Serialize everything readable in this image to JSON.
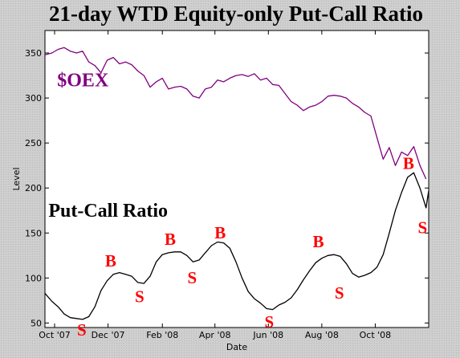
{
  "chart_data": {
    "type": "line",
    "title": "21-day WTD Equity-only Put-Call Ratio",
    "xlabel": "Date",
    "ylabel": "Level",
    "ylim": [
      45,
      375
    ],
    "xlim": [
      "2007-09-20",
      "2008-12-01"
    ],
    "grid": false,
    "background_color": "#ffffff",
    "x_ticks": [
      {
        "date": "2007-10-01",
        "label": "Oct '07"
      },
      {
        "date": "2007-12-01",
        "label": "Dec '07"
      },
      {
        "date": "2008-02-01",
        "label": "Feb '08"
      },
      {
        "date": "2008-04-01",
        "label": "Apr '08"
      },
      {
        "date": "2008-06-01",
        "label": "Jun '08"
      },
      {
        "date": "2008-08-01",
        "label": "Aug '08"
      },
      {
        "date": "2008-10-01",
        "label": "Oct '08"
      }
    ],
    "y_ticks": [
      50,
      100,
      150,
      200,
      250,
      300,
      350
    ],
    "series": [
      {
        "name": "$OEX",
        "color": "#800080",
        "points": [
          [
            "2007-09-20",
            348
          ],
          [
            "2007-09-28",
            350
          ],
          [
            "2007-10-05",
            354
          ],
          [
            "2007-10-12",
            356
          ],
          [
            "2007-10-19",
            352
          ],
          [
            "2007-10-26",
            350
          ],
          [
            "2007-11-02",
            352
          ],
          [
            "2007-11-09",
            340
          ],
          [
            "2007-11-16",
            336
          ],
          [
            "2007-11-23",
            328
          ],
          [
            "2007-11-30",
            342
          ],
          [
            "2007-12-07",
            345
          ],
          [
            "2007-12-14",
            338
          ],
          [
            "2007-12-21",
            340
          ],
          [
            "2007-12-28",
            337
          ],
          [
            "2008-01-04",
            330
          ],
          [
            "2008-01-11",
            325
          ],
          [
            "2008-01-18",
            312
          ],
          [
            "2008-01-25",
            318
          ],
          [
            "2008-02-01",
            322
          ],
          [
            "2008-02-08",
            310
          ],
          [
            "2008-02-15",
            312
          ],
          [
            "2008-02-22",
            313
          ],
          [
            "2008-02-29",
            310
          ],
          [
            "2008-03-07",
            302
          ],
          [
            "2008-03-14",
            300
          ],
          [
            "2008-03-21",
            310
          ],
          [
            "2008-03-28",
            312
          ],
          [
            "2008-04-04",
            320
          ],
          [
            "2008-04-11",
            318
          ],
          [
            "2008-04-18",
            322
          ],
          [
            "2008-04-25",
            325
          ],
          [
            "2008-05-02",
            326
          ],
          [
            "2008-05-09",
            324
          ],
          [
            "2008-05-16",
            327
          ],
          [
            "2008-05-23",
            320
          ],
          [
            "2008-05-30",
            322
          ],
          [
            "2008-06-06",
            315
          ],
          [
            "2008-06-13",
            314
          ],
          [
            "2008-06-20",
            305
          ],
          [
            "2008-06-27",
            296
          ],
          [
            "2008-07-04",
            292
          ],
          [
            "2008-07-11",
            286
          ],
          [
            "2008-07-18",
            290
          ],
          [
            "2008-07-25",
            292
          ],
          [
            "2008-08-01",
            296
          ],
          [
            "2008-08-08",
            302
          ],
          [
            "2008-08-15",
            303
          ],
          [
            "2008-08-22",
            302
          ],
          [
            "2008-08-29",
            300
          ],
          [
            "2008-09-05",
            294
          ],
          [
            "2008-09-12",
            290
          ],
          [
            "2008-09-19",
            284
          ],
          [
            "2008-09-26",
            280
          ],
          [
            "2008-10-03",
            256
          ],
          [
            "2008-10-10",
            232
          ],
          [
            "2008-10-17",
            245
          ],
          [
            "2008-10-24",
            225
          ],
          [
            "2008-10-31",
            240
          ],
          [
            "2008-11-07",
            236
          ],
          [
            "2008-11-14",
            246
          ],
          [
            "2008-11-21",
            225
          ],
          [
            "2008-11-28",
            210
          ]
        ]
      },
      {
        "name": "Put-Call Ratio",
        "color": "#000000",
        "points": [
          [
            "2007-09-20",
            83
          ],
          [
            "2007-09-28",
            74
          ],
          [
            "2007-10-05",
            68
          ],
          [
            "2007-10-12",
            60
          ],
          [
            "2007-10-19",
            56
          ],
          [
            "2007-10-26",
            55
          ],
          [
            "2007-11-02",
            54
          ],
          [
            "2007-11-09",
            57
          ],
          [
            "2007-11-16",
            68
          ],
          [
            "2007-11-23",
            86
          ],
          [
            "2007-11-30",
            97
          ],
          [
            "2007-12-07",
            104
          ],
          [
            "2007-12-14",
            106
          ],
          [
            "2007-12-21",
            104
          ],
          [
            "2007-12-28",
            102
          ],
          [
            "2008-01-04",
            95
          ],
          [
            "2008-01-11",
            94
          ],
          [
            "2008-01-18",
            102
          ],
          [
            "2008-01-25",
            118
          ],
          [
            "2008-02-01",
            126
          ],
          [
            "2008-02-08",
            128
          ],
          [
            "2008-02-15",
            129
          ],
          [
            "2008-02-22",
            129
          ],
          [
            "2008-02-29",
            125
          ],
          [
            "2008-03-07",
            118
          ],
          [
            "2008-03-14",
            120
          ],
          [
            "2008-03-21",
            128
          ],
          [
            "2008-03-28",
            136
          ],
          [
            "2008-04-04",
            140
          ],
          [
            "2008-04-11",
            139
          ],
          [
            "2008-04-18",
            133
          ],
          [
            "2008-04-25",
            118
          ],
          [
            "2008-05-02",
            100
          ],
          [
            "2008-05-09",
            85
          ],
          [
            "2008-05-16",
            77
          ],
          [
            "2008-05-23",
            72
          ],
          [
            "2008-05-30",
            66
          ],
          [
            "2008-06-06",
            65
          ],
          [
            "2008-06-13",
            70
          ],
          [
            "2008-06-20",
            73
          ],
          [
            "2008-06-27",
            78
          ],
          [
            "2008-07-04",
            87
          ],
          [
            "2008-07-11",
            98
          ],
          [
            "2008-07-18",
            108
          ],
          [
            "2008-07-25",
            117
          ],
          [
            "2008-08-01",
            122
          ],
          [
            "2008-08-08",
            125
          ],
          [
            "2008-08-15",
            126
          ],
          [
            "2008-08-22",
            124
          ],
          [
            "2008-08-29",
            116
          ],
          [
            "2008-09-05",
            105
          ],
          [
            "2008-09-12",
            101
          ],
          [
            "2008-09-19",
            103
          ],
          [
            "2008-09-26",
            106
          ],
          [
            "2008-10-03",
            112
          ],
          [
            "2008-10-10",
            126
          ],
          [
            "2008-10-17",
            150
          ],
          [
            "2008-10-24",
            175
          ],
          [
            "2008-10-31",
            195
          ],
          [
            "2008-11-07",
            212
          ],
          [
            "2008-11-14",
            217
          ],
          [
            "2008-11-21",
            200
          ],
          [
            "2008-11-28",
            178
          ],
          [
            "2008-12-01",
            197
          ]
        ]
      }
    ],
    "series_labels": [
      {
        "series": "$OEX",
        "text": "$OEX",
        "date": "2007-10-04",
        "level": 313,
        "color": "#800080"
      },
      {
        "series": "Put-Call Ratio",
        "text": "Put-Call Ratio",
        "date": "2007-09-24",
        "level": 168,
        "color": "#000000"
      }
    ],
    "annotations": [
      {
        "text": "S",
        "date": "2007-11-01",
        "level": 36,
        "color": "#ff0000"
      },
      {
        "text": "B",
        "date": "2007-12-04",
        "level": 113,
        "color": "#ff0000"
      },
      {
        "text": "S",
        "date": "2008-01-06",
        "level": 73,
        "color": "#ff0000"
      },
      {
        "text": "B",
        "date": "2008-02-10",
        "level": 137,
        "color": "#ff0000"
      },
      {
        "text": "S",
        "date": "2008-03-06",
        "level": 94,
        "color": "#ff0000"
      },
      {
        "text": "B",
        "date": "2008-04-07",
        "level": 144,
        "color": "#ff0000"
      },
      {
        "text": "S",
        "date": "2008-06-02",
        "level": 45,
        "color": "#ff0000"
      },
      {
        "text": "B",
        "date": "2008-07-28",
        "level": 134,
        "color": "#ff0000"
      },
      {
        "text": "S",
        "date": "2008-08-21",
        "level": 77,
        "color": "#ff0000"
      },
      {
        "text": "B",
        "date": "2008-11-08",
        "level": 221,
        "color": "#ff0000"
      },
      {
        "text": "S",
        "date": "2008-11-24",
        "level": 150,
        "color": "#ff0000"
      }
    ]
  }
}
